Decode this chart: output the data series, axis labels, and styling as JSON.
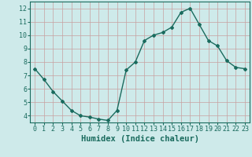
{
  "x": [
    0,
    1,
    2,
    3,
    4,
    5,
    6,
    7,
    8,
    9,
    10,
    11,
    12,
    13,
    14,
    15,
    16,
    17,
    18,
    19,
    20,
    21,
    22,
    23
  ],
  "y": [
    7.5,
    6.7,
    5.8,
    5.1,
    4.4,
    4.0,
    3.9,
    3.75,
    3.65,
    4.4,
    7.4,
    8.0,
    9.6,
    10.0,
    10.2,
    10.6,
    11.7,
    12.0,
    10.8,
    9.6,
    9.2,
    8.1,
    7.6,
    7.5
  ],
  "xlabel": "Humidex (Indice chaleur)",
  "ylim": [
    3.5,
    12.5
  ],
  "xlim": [
    -0.5,
    23.5
  ],
  "yticks": [
    4,
    5,
    6,
    7,
    8,
    9,
    10,
    11,
    12
  ],
  "xticks": [
    0,
    1,
    2,
    3,
    4,
    5,
    6,
    7,
    8,
    9,
    10,
    11,
    12,
    13,
    14,
    15,
    16,
    17,
    18,
    19,
    20,
    21,
    22,
    23
  ],
  "line_color": "#1a6b5e",
  "marker": "D",
  "marker_size": 2.0,
  "bg_color": "#ceeaea",
  "grid_color": "#c8a0a0",
  "tick_label_color": "#1a6b5e",
  "xlabel_color": "#1a6b5e",
  "xlabel_fontsize": 7.5,
  "tick_fontsize": 6.0
}
